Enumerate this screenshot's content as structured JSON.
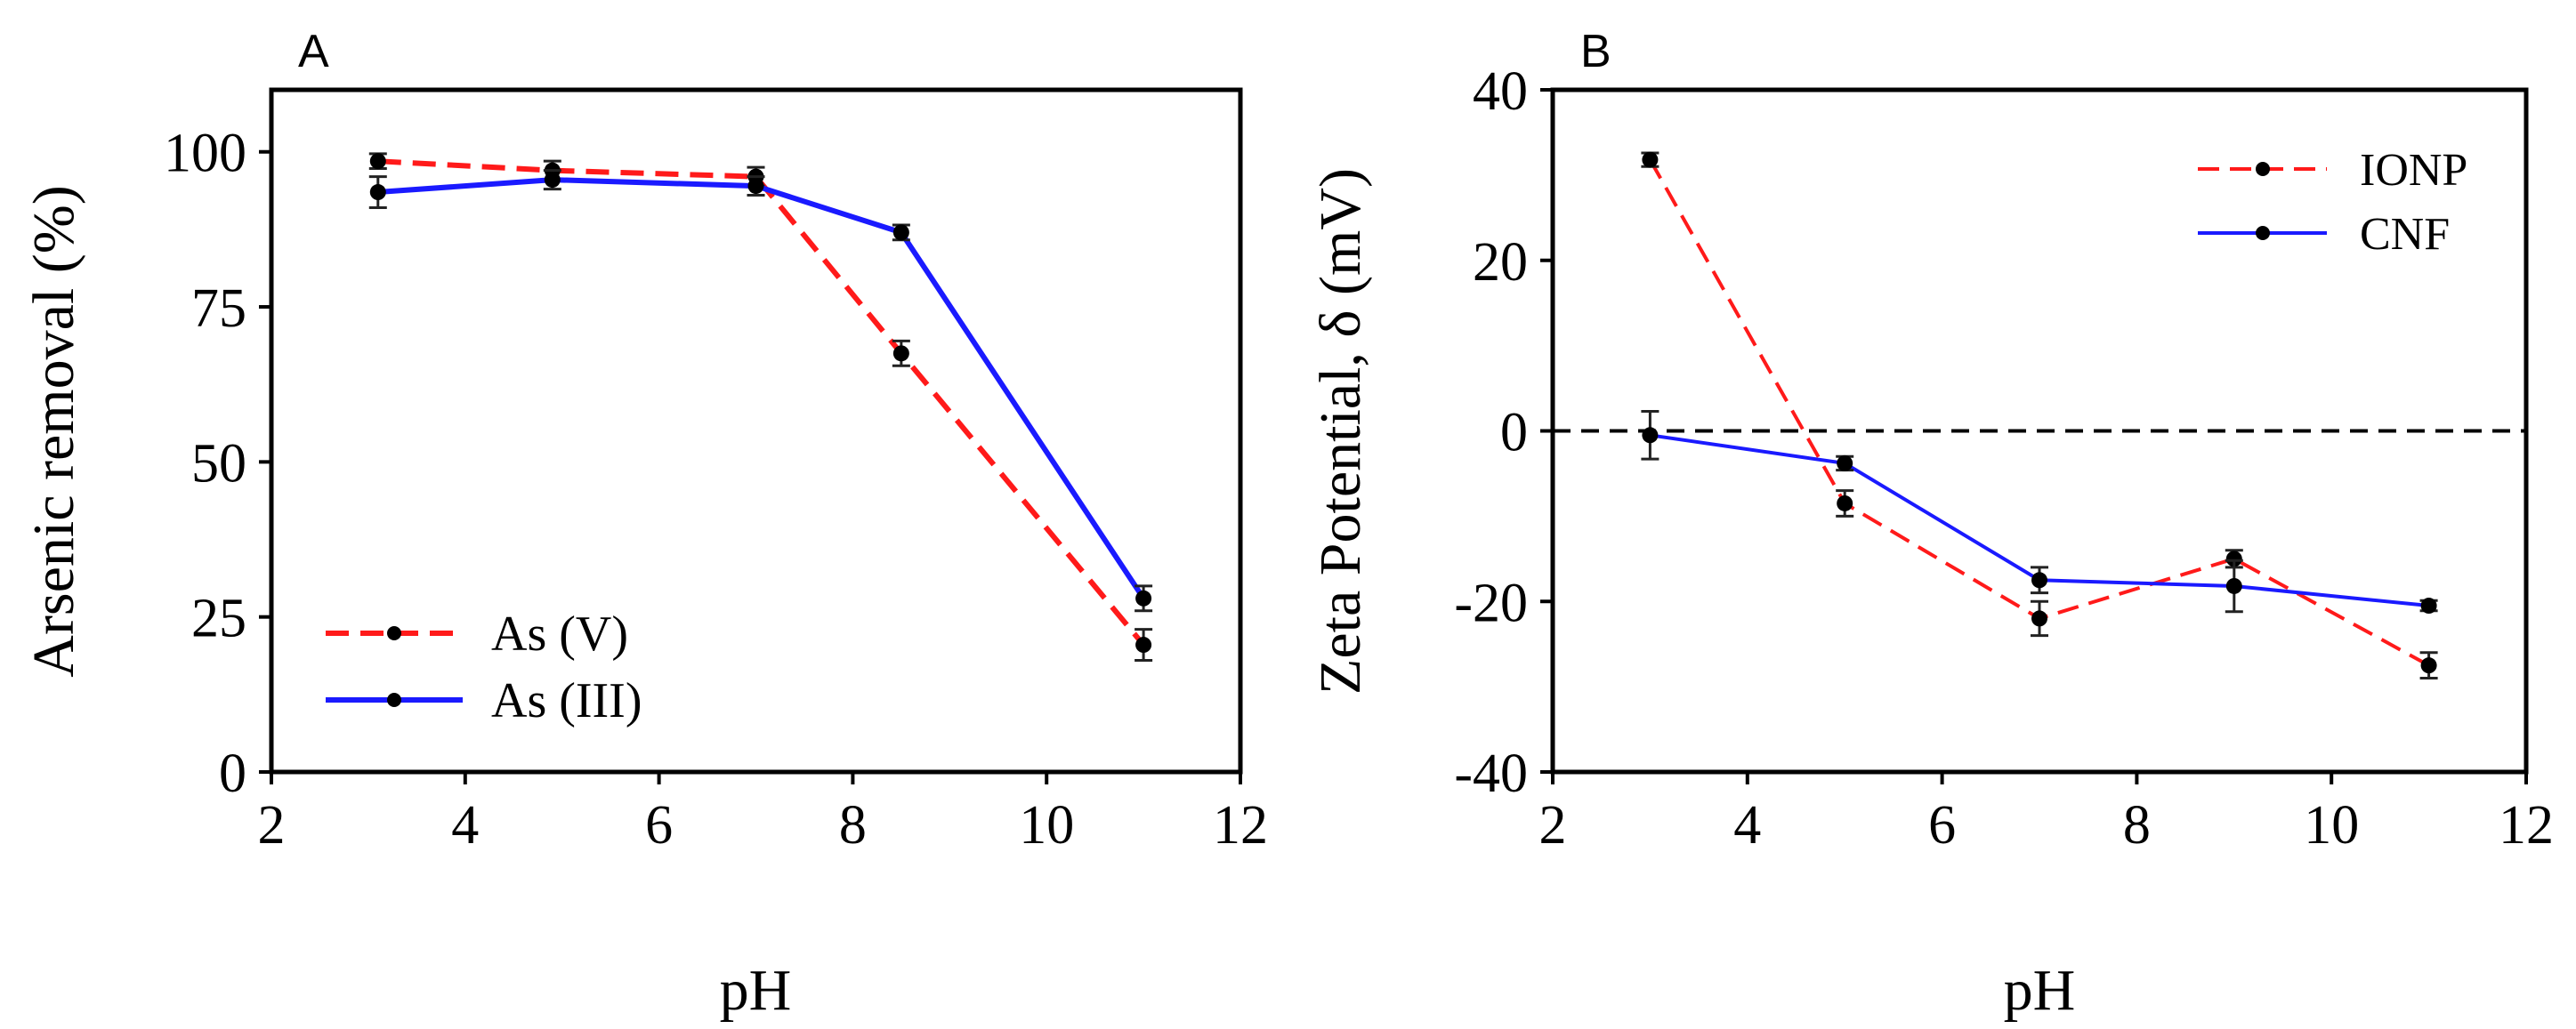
{
  "chart_data": [
    {
      "type": "line",
      "panel_label": "A",
      "title": "",
      "xlabel": "pH",
      "ylabel": "Arsenic removal (%)",
      "xlim": [
        2,
        12
      ],
      "ylim": [
        0,
        110
      ],
      "xticks": [
        2,
        4,
        6,
        8,
        10,
        12
      ],
      "yticks": [
        0,
        25,
        50,
        75,
        100
      ],
      "xtick_labels": [
        "2",
        "4",
        "6",
        "8",
        "10",
        "12"
      ],
      "ytick_labels": [
        "0",
        "25",
        "50",
        "75",
        "100"
      ],
      "grid": false,
      "legend_position": "bottom-left",
      "series": [
        {
          "name": "As (V)",
          "color": "#ff1a1a",
          "style": "dashed",
          "x": [
            3.1,
            4.9,
            7.0,
            8.5,
            11.0
          ],
          "y": [
            98.5,
            97.0,
            96.0,
            67.5,
            20.5
          ],
          "err": [
            1.2,
            1.5,
            1.5,
            2.0,
            2.5
          ]
        },
        {
          "name": "As (III)",
          "color": "#1a1aff",
          "style": "solid",
          "x": [
            3.1,
            4.9,
            7.0,
            8.5,
            11.0
          ],
          "y": [
            93.5,
            95.5,
            94.5,
            87.0,
            28.0
          ],
          "err": [
            2.5,
            1.5,
            1.5,
            1.2,
            2.0
          ]
        }
      ]
    },
    {
      "type": "line",
      "panel_label": "B",
      "title": "",
      "xlabel": "pH",
      "ylabel": "Zeta Potential, δ (mV)",
      "xlim": [
        2,
        12
      ],
      "ylim": [
        -40,
        40
      ],
      "xticks": [
        2,
        4,
        6,
        8,
        10,
        12
      ],
      "yticks": [
        -40,
        -20,
        0,
        20,
        40
      ],
      "xtick_labels": [
        "2",
        "4",
        "6",
        "8",
        "10",
        "12"
      ],
      "ytick_labels": [
        "-40",
        "-20",
        "0",
        "20",
        "40"
      ],
      "reference_line_y": 0,
      "grid": false,
      "legend_position": "top-right",
      "series": [
        {
          "name": "IONP",
          "color": "#ff1a1a",
          "style": "dashed",
          "x": [
            3,
            5,
            7,
            9,
            11
          ],
          "y": [
            31.8,
            -8.5,
            -22.0,
            -15.0,
            -27.5
          ],
          "err": [
            0.8,
            1.5,
            2.0,
            1.0,
            1.5
          ]
        },
        {
          "name": "CNF",
          "color": "#1a1aff",
          "style": "solid",
          "x": [
            3,
            5,
            7,
            9,
            11
          ],
          "y": [
            -0.5,
            -3.8,
            -17.5,
            -18.2,
            -20.5
          ],
          "err": [
            2.8,
            0.8,
            1.5,
            3.0,
            0.6
          ]
        }
      ]
    }
  ]
}
